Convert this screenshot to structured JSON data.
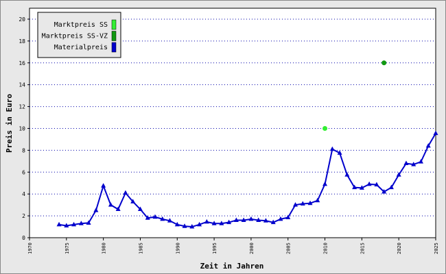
{
  "chart_data": {
    "type": "line",
    "xlabel": "Zeit in Jahren",
    "ylabel": "Preis in Euro",
    "xlim": [
      1970,
      2025
    ],
    "xticks": [
      1970,
      1975,
      1980,
      1985,
      1990,
      1995,
      2000,
      2005,
      2010,
      2015,
      2020,
      2025
    ],
    "ylim": [
      0,
      21
    ],
    "yticks": [
      0,
      2,
      4,
      6,
      8,
      10,
      12,
      14,
      16,
      18,
      20
    ],
    "grid": true,
    "legend": "upper left",
    "series": [
      {
        "name": "Marktpreis SS",
        "color": "#33ee33",
        "marker": "circle",
        "x": [
          2010
        ],
        "values": [
          10
        ]
      },
      {
        "name": "Marktpreis SS-VZ",
        "color": "#119911",
        "marker": "circle",
        "x": [
          2018
        ],
        "values": [
          16
        ]
      },
      {
        "name": "Materialpreis",
        "color": "#0000cc",
        "marker": "triangle",
        "x": [
          1974,
          1975,
          1976,
          1977,
          1978,
          1979,
          1980,
          1981,
          1982,
          1983,
          1984,
          1985,
          1986,
          1987,
          1988,
          1989,
          1990,
          1991,
          1992,
          1993,
          1994,
          1995,
          1996,
          1997,
          1998,
          1999,
          2000,
          2001,
          2002,
          2003,
          2004,
          2005,
          2006,
          2007,
          2008,
          2009,
          2010,
          2011,
          2012,
          2013,
          2014,
          2015,
          2016,
          2017,
          2018,
          2019,
          2020,
          2021,
          2022,
          2023,
          2024,
          2025
        ],
        "values": [
          1.2,
          1.1,
          1.2,
          1.3,
          1.35,
          2.5,
          4.75,
          3.0,
          2.6,
          4.1,
          3.3,
          2.6,
          1.8,
          1.9,
          1.7,
          1.55,
          1.2,
          1.05,
          1.0,
          1.2,
          1.45,
          1.3,
          1.3,
          1.4,
          1.6,
          1.6,
          1.7,
          1.6,
          1.55,
          1.4,
          1.7,
          1.85,
          3.0,
          3.1,
          3.15,
          3.4,
          4.9,
          8.1,
          7.75,
          5.75,
          4.6,
          4.55,
          4.9,
          4.85,
          4.2,
          4.6,
          5.75,
          6.8,
          6.7,
          6.95,
          8.4,
          9.55
        ]
      }
    ]
  }
}
